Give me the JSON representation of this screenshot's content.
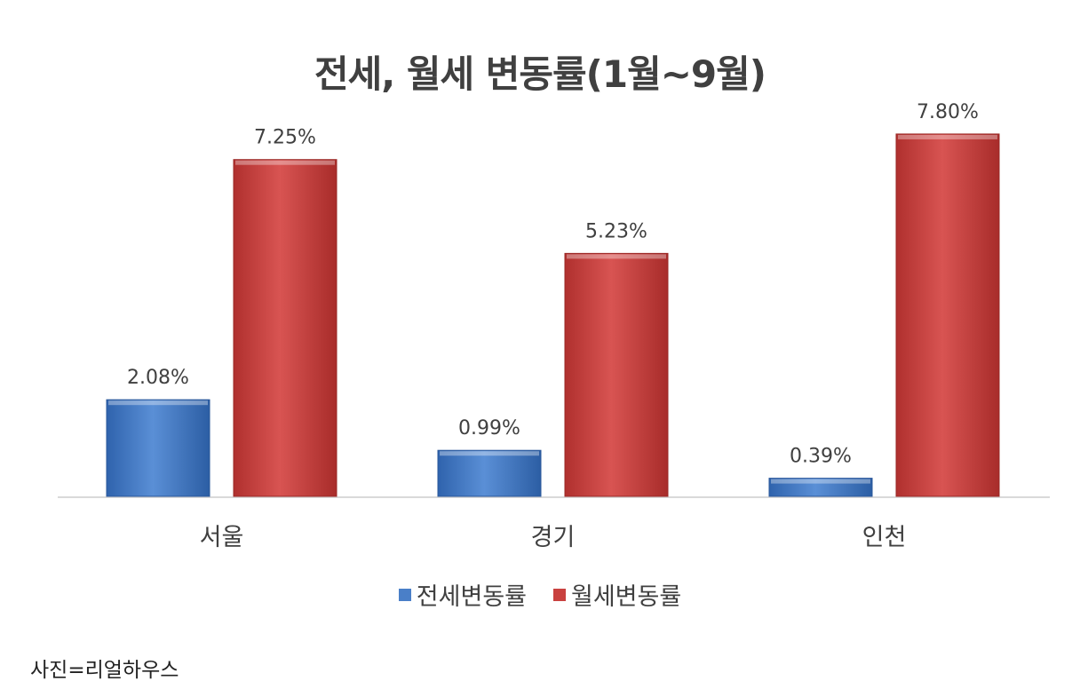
{
  "chart_data": {
    "type": "bar",
    "title": "전세, 월세 변동률(1월~9월)",
    "categories": [
      "서울",
      "경기",
      "인천"
    ],
    "series": [
      {
        "name": "전세변동률",
        "values": [
          2.08,
          0.99,
          0.39
        ],
        "labels": [
          "2.08%",
          "0.99%",
          "0.39%"
        ],
        "color": "#4a7fc8"
      },
      {
        "name": "월세변동률",
        "values": [
          7.25,
          5.23,
          7.8
        ],
        "labels": [
          "7.25%",
          "5.23%",
          "7.80%"
        ],
        "color": "#c9413f"
      }
    ],
    "ylim": [
      0,
      8.2
    ],
    "grid": false,
    "legend": "bottom-center"
  },
  "source": "사진=리얼하우스"
}
